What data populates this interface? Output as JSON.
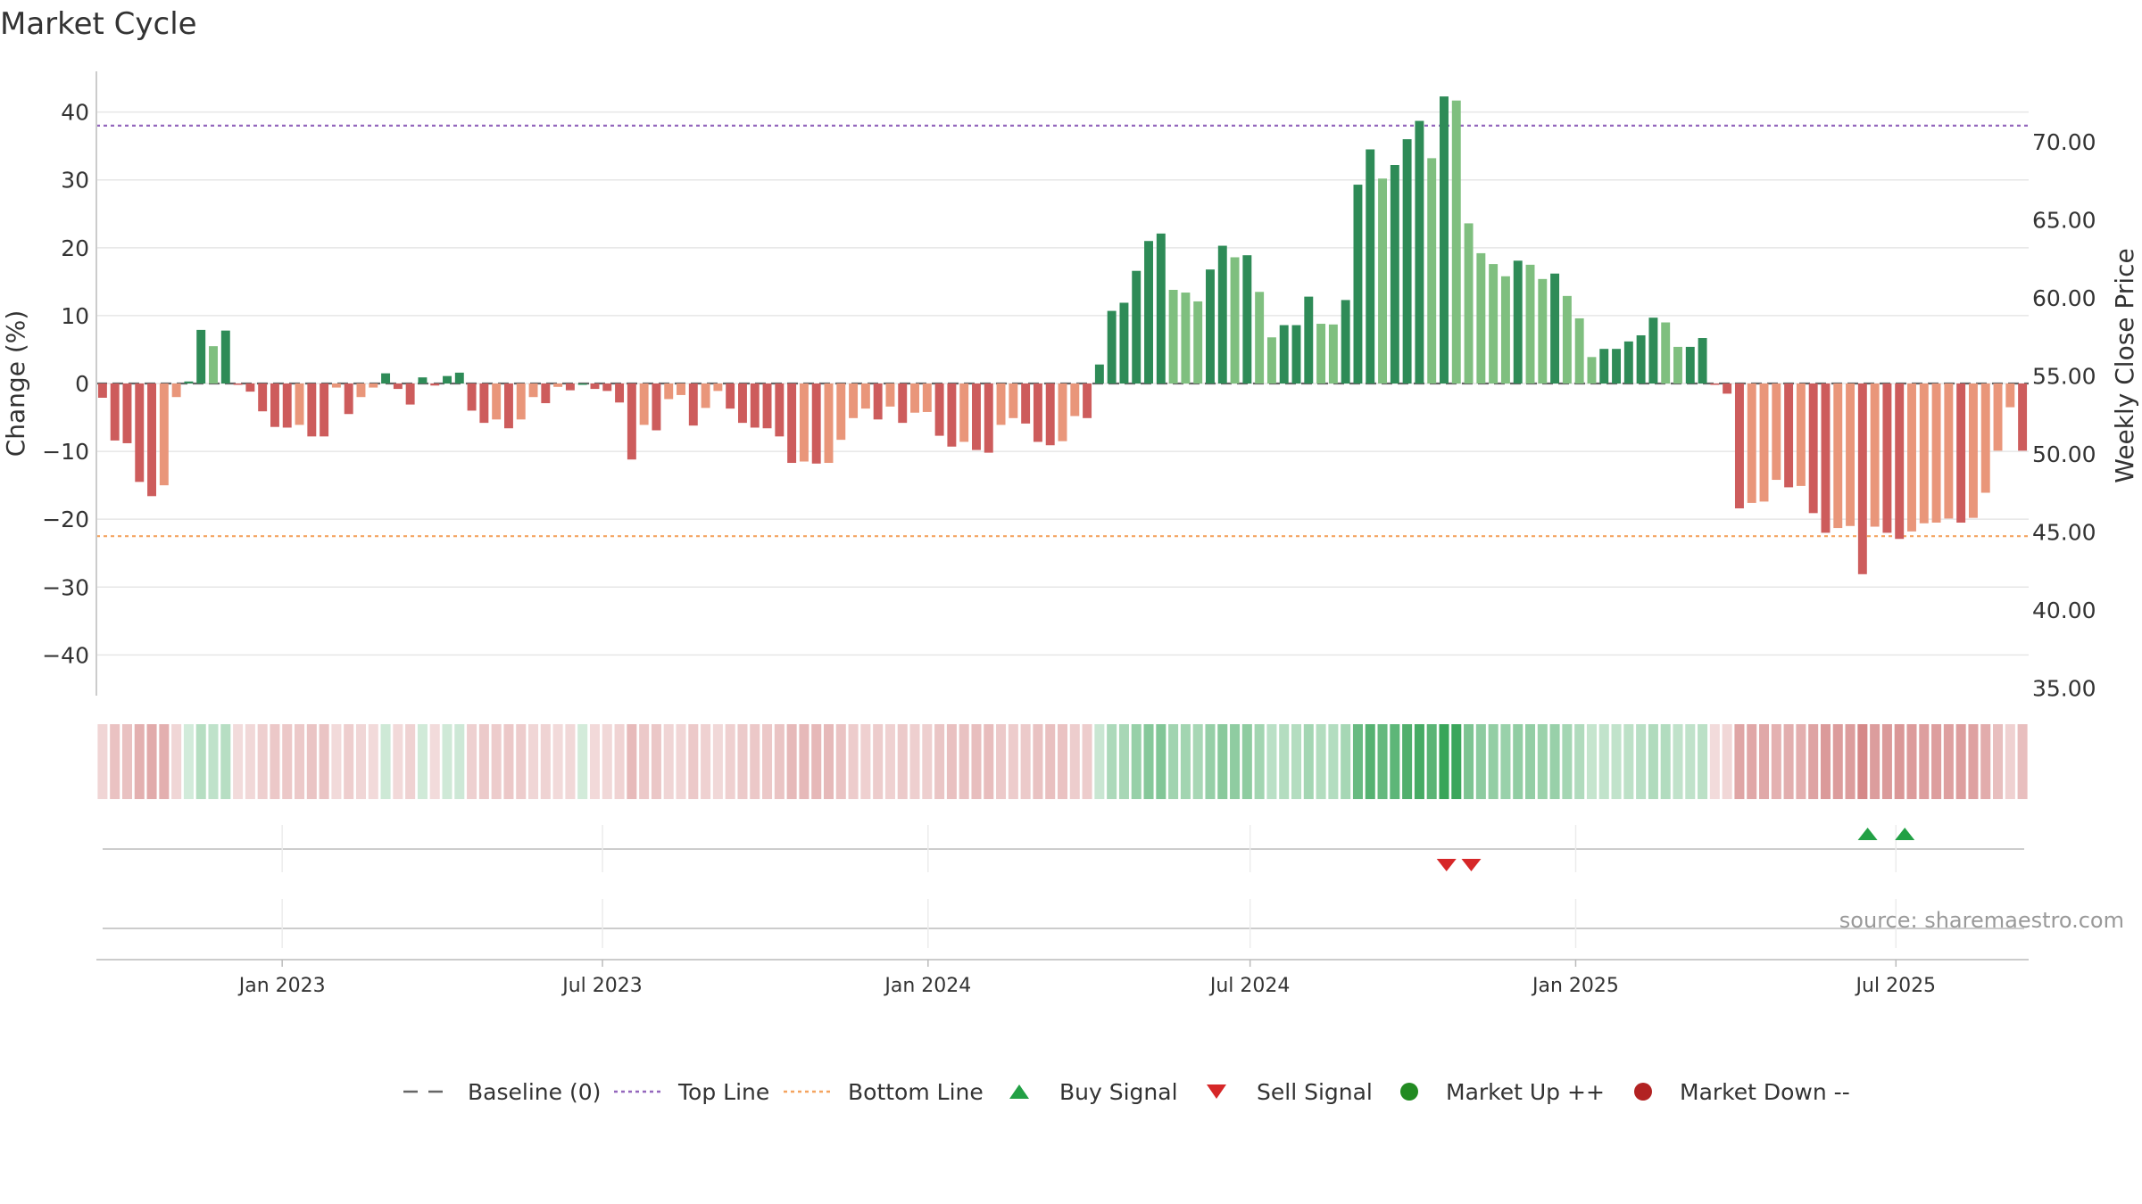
{
  "chart_data": {
    "type": "bar",
    "title": "Market Cycle",
    "ylabel": "Change (%)",
    "y2label": "Weekly Close Price",
    "ylim": [
      -46,
      46
    ],
    "y2lim": [
      34.5,
      74.5
    ],
    "yticks": [
      40,
      30,
      20,
      10,
      0,
      -10,
      -20,
      -30,
      -40
    ],
    "ytick_labels": [
      "40",
      "30",
      "20",
      "10",
      "0",
      "−10",
      "−20",
      "−30",
      "−40"
    ],
    "y2ticks": [
      70,
      65,
      60,
      55,
      50,
      45,
      40,
      35
    ],
    "y2tick_labels": [
      "70.00",
      "65.00",
      "60.00",
      "55.00",
      "50.00",
      "45.00",
      "40.00",
      "35.00"
    ],
    "x_start": "2022-09-18",
    "x_end": "2025-09-14",
    "x_interval": "weekly",
    "xticks": [
      {
        "date": "2023-01-01",
        "label": "Jan 2023"
      },
      {
        "date": "2023-07-01",
        "label": "Jul 2023"
      },
      {
        "date": "2024-01-01",
        "label": "Jan 2024"
      },
      {
        "date": "2024-07-01",
        "label": "Jul 2024"
      },
      {
        "date": "2025-01-01",
        "label": "Jan 2025"
      },
      {
        "date": "2025-07-01",
        "label": "Jul 2025"
      }
    ],
    "reference_lines": [
      {
        "name": "Baseline (0)",
        "value": 0,
        "style": "dashed",
        "color": "#666666"
      },
      {
        "name": "Top Line",
        "value": 38,
        "style": "dotted",
        "color": "#9467bd"
      },
      {
        "name": "Bottom Line",
        "value": -22.5,
        "style": "dotted",
        "color": "#f4a460"
      }
    ],
    "values": [
      -2.1,
      -8.4,
      -8.8,
      -14.5,
      -16.6,
      -15,
      -2,
      0.3,
      7.9,
      5.5,
      7.8,
      -0.2,
      -1.2,
      -4.1,
      -6.4,
      -6.5,
      -6.1,
      -7.8,
      -7.8,
      -0.6,
      -4.5,
      -2,
      -0.6,
      1.5,
      -0.8,
      -3.1,
      0.9,
      -0.3,
      1.1,
      1.6,
      -4,
      -5.8,
      -5.3,
      -6.6,
      -5.3,
      -2,
      -2.9,
      -0.5,
      -1,
      0,
      -0.8,
      -1.1,
      -2.8,
      -11.2,
      -6.1,
      -6.9,
      -2.3,
      -1.7,
      -6.2,
      -3.6,
      -1.1,
      -3.7,
      -5.8,
      -6.5,
      -6.6,
      -7.8,
      -11.7,
      -11.5,
      -11.8,
      -11.7,
      -8.3,
      -5.1,
      -3.7,
      -5.3,
      -3.4,
      -5.8,
      -4.3,
      -4.2,
      -7.7,
      -9.3,
      -8.6,
      -9.8,
      -10.2,
      -6.1,
      -5.1,
      -5.9,
      -8.6,
      -9.1,
      -8.5,
      -4.8,
      -5.1,
      2.8,
      10.7,
      11.9,
      16.6,
      21,
      22.1,
      13.8,
      13.4,
      12.1,
      16.8,
      20.3,
      18.6,
      18.9,
      13.5,
      6.8,
      8.6,
      8.6,
      12.8,
      8.8,
      8.7,
      12.3,
      29.3,
      34.5,
      30.2,
      32.2,
      36,
      38.7,
      33.2,
      42.3,
      41.7,
      23.6,
      19.2,
      17.6,
      15.8,
      18.1,
      17.5,
      15.4,
      16.2,
      12.9,
      9.6,
      3.9,
      5.1,
      5.1,
      6.2,
      7.1,
      9.7,
      9,
      5.4,
      5.4,
      6.7,
      -0.2,
      -1.5,
      -18.4,
      -17.6,
      -17.4,
      -14.2,
      -15.3,
      -15.1,
      -19.1,
      -22,
      -21.3,
      -21,
      -28.1,
      -21.1,
      -22,
      -22.9,
      -21.8,
      -20.6,
      -20.5,
      -19.9,
      -20.5,
      -19.8,
      -16.1,
      -9.9,
      -3.5,
      -9.9
    ],
    "heat_strip": {
      "description": "heat strip below the main plot; color intensity follows the same weekly values"
    },
    "signals": [
      {
        "type": "sell",
        "date": "2024-10-20"
      },
      {
        "type": "sell",
        "date": "2024-11-03"
      },
      {
        "type": "buy",
        "date": "2025-06-15"
      },
      {
        "type": "buy",
        "date": "2025-07-06"
      }
    ],
    "colors": {
      "up_dark": "#2e8b57",
      "up_light": "#7fbf7f",
      "down_dark": "#cd5c5c",
      "down_light": "#e9967a",
      "buy": "#22a045",
      "sell": "#d62728",
      "market_up": "#228b22",
      "market_down": "#b22222"
    },
    "legend_position": "bottom-center",
    "legend": [
      {
        "key": "baseline",
        "label": "Baseline (0)",
        "symbol": "dashed-line",
        "color": "#666666"
      },
      {
        "key": "top",
        "label": "Top Line",
        "symbol": "dotted-line",
        "color": "#9467bd"
      },
      {
        "key": "bottom",
        "label": "Bottom Line",
        "symbol": "dotted-line",
        "color": "#f4a460"
      },
      {
        "key": "buy",
        "label": "Buy Signal",
        "symbol": "triangle-up",
        "color": "#22a045"
      },
      {
        "key": "sell",
        "label": "Sell Signal",
        "symbol": "triangle-down",
        "color": "#d62728"
      },
      {
        "key": "up",
        "label": "Market Up ++",
        "symbol": "circle",
        "color": "#228b22"
      },
      {
        "key": "down",
        "label": "Market Down --",
        "symbol": "circle",
        "color": "#b22222"
      }
    ],
    "source_text": "source: sharemaestro.com",
    "grid": true
  }
}
